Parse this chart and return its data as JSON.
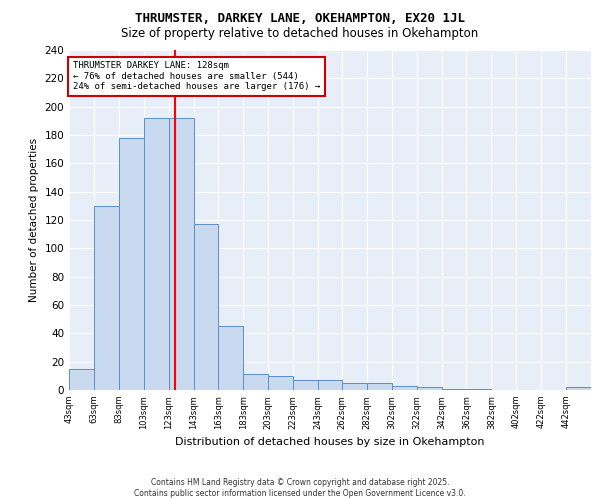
{
  "title1": "THRUMSTER, DARKEY LANE, OKEHAMPTON, EX20 1JL",
  "title2": "Size of property relative to detached houses in Okehampton",
  "xlabel": "Distribution of detached houses by size in Okehampton",
  "ylabel": "Number of detached properties",
  "bin_edges": [
    43,
    63,
    83,
    103,
    123,
    143,
    163,
    183,
    203,
    223,
    243,
    262,
    282,
    302,
    322,
    342,
    362,
    382,
    402,
    422,
    442,
    462
  ],
  "bar_heights": [
    15,
    130,
    178,
    192,
    192,
    117,
    45,
    11,
    10,
    7,
    7,
    5,
    5,
    3,
    2,
    1,
    1,
    0,
    0,
    0,
    2
  ],
  "bar_color": "#c9d9f0",
  "bar_edge_color": "#5b8fc9",
  "red_line_x": 128,
  "annotation_text": "THRUMSTER DARKEY LANE: 128sqm\n← 76% of detached houses are smaller (544)\n24% of semi-detached houses are larger (176) →",
  "annotation_box_color": "#ffffff",
  "annotation_border_color": "#cc0000",
  "ylim": [
    0,
    240
  ],
  "yticks": [
    0,
    20,
    40,
    60,
    80,
    100,
    120,
    140,
    160,
    180,
    200,
    220,
    240
  ],
  "background_color": "#e8eef8",
  "grid_color": "#ffffff",
  "footer_text": "Contains HM Land Registry data © Crown copyright and database right 2025.\nContains public sector information licensed under the Open Government Licence v3.0.",
  "tick_labels": [
    "43sqm",
    "63sqm",
    "83sqm",
    "103sqm",
    "123sqm",
    "143sqm",
    "163sqm",
    "183sqm",
    "203sqm",
    "223sqm",
    "243sqm",
    "262sqm",
    "282sqm",
    "302sqm",
    "322sqm",
    "342sqm",
    "362sqm",
    "382sqm",
    "402sqm",
    "422sqm",
    "442sqm"
  ]
}
